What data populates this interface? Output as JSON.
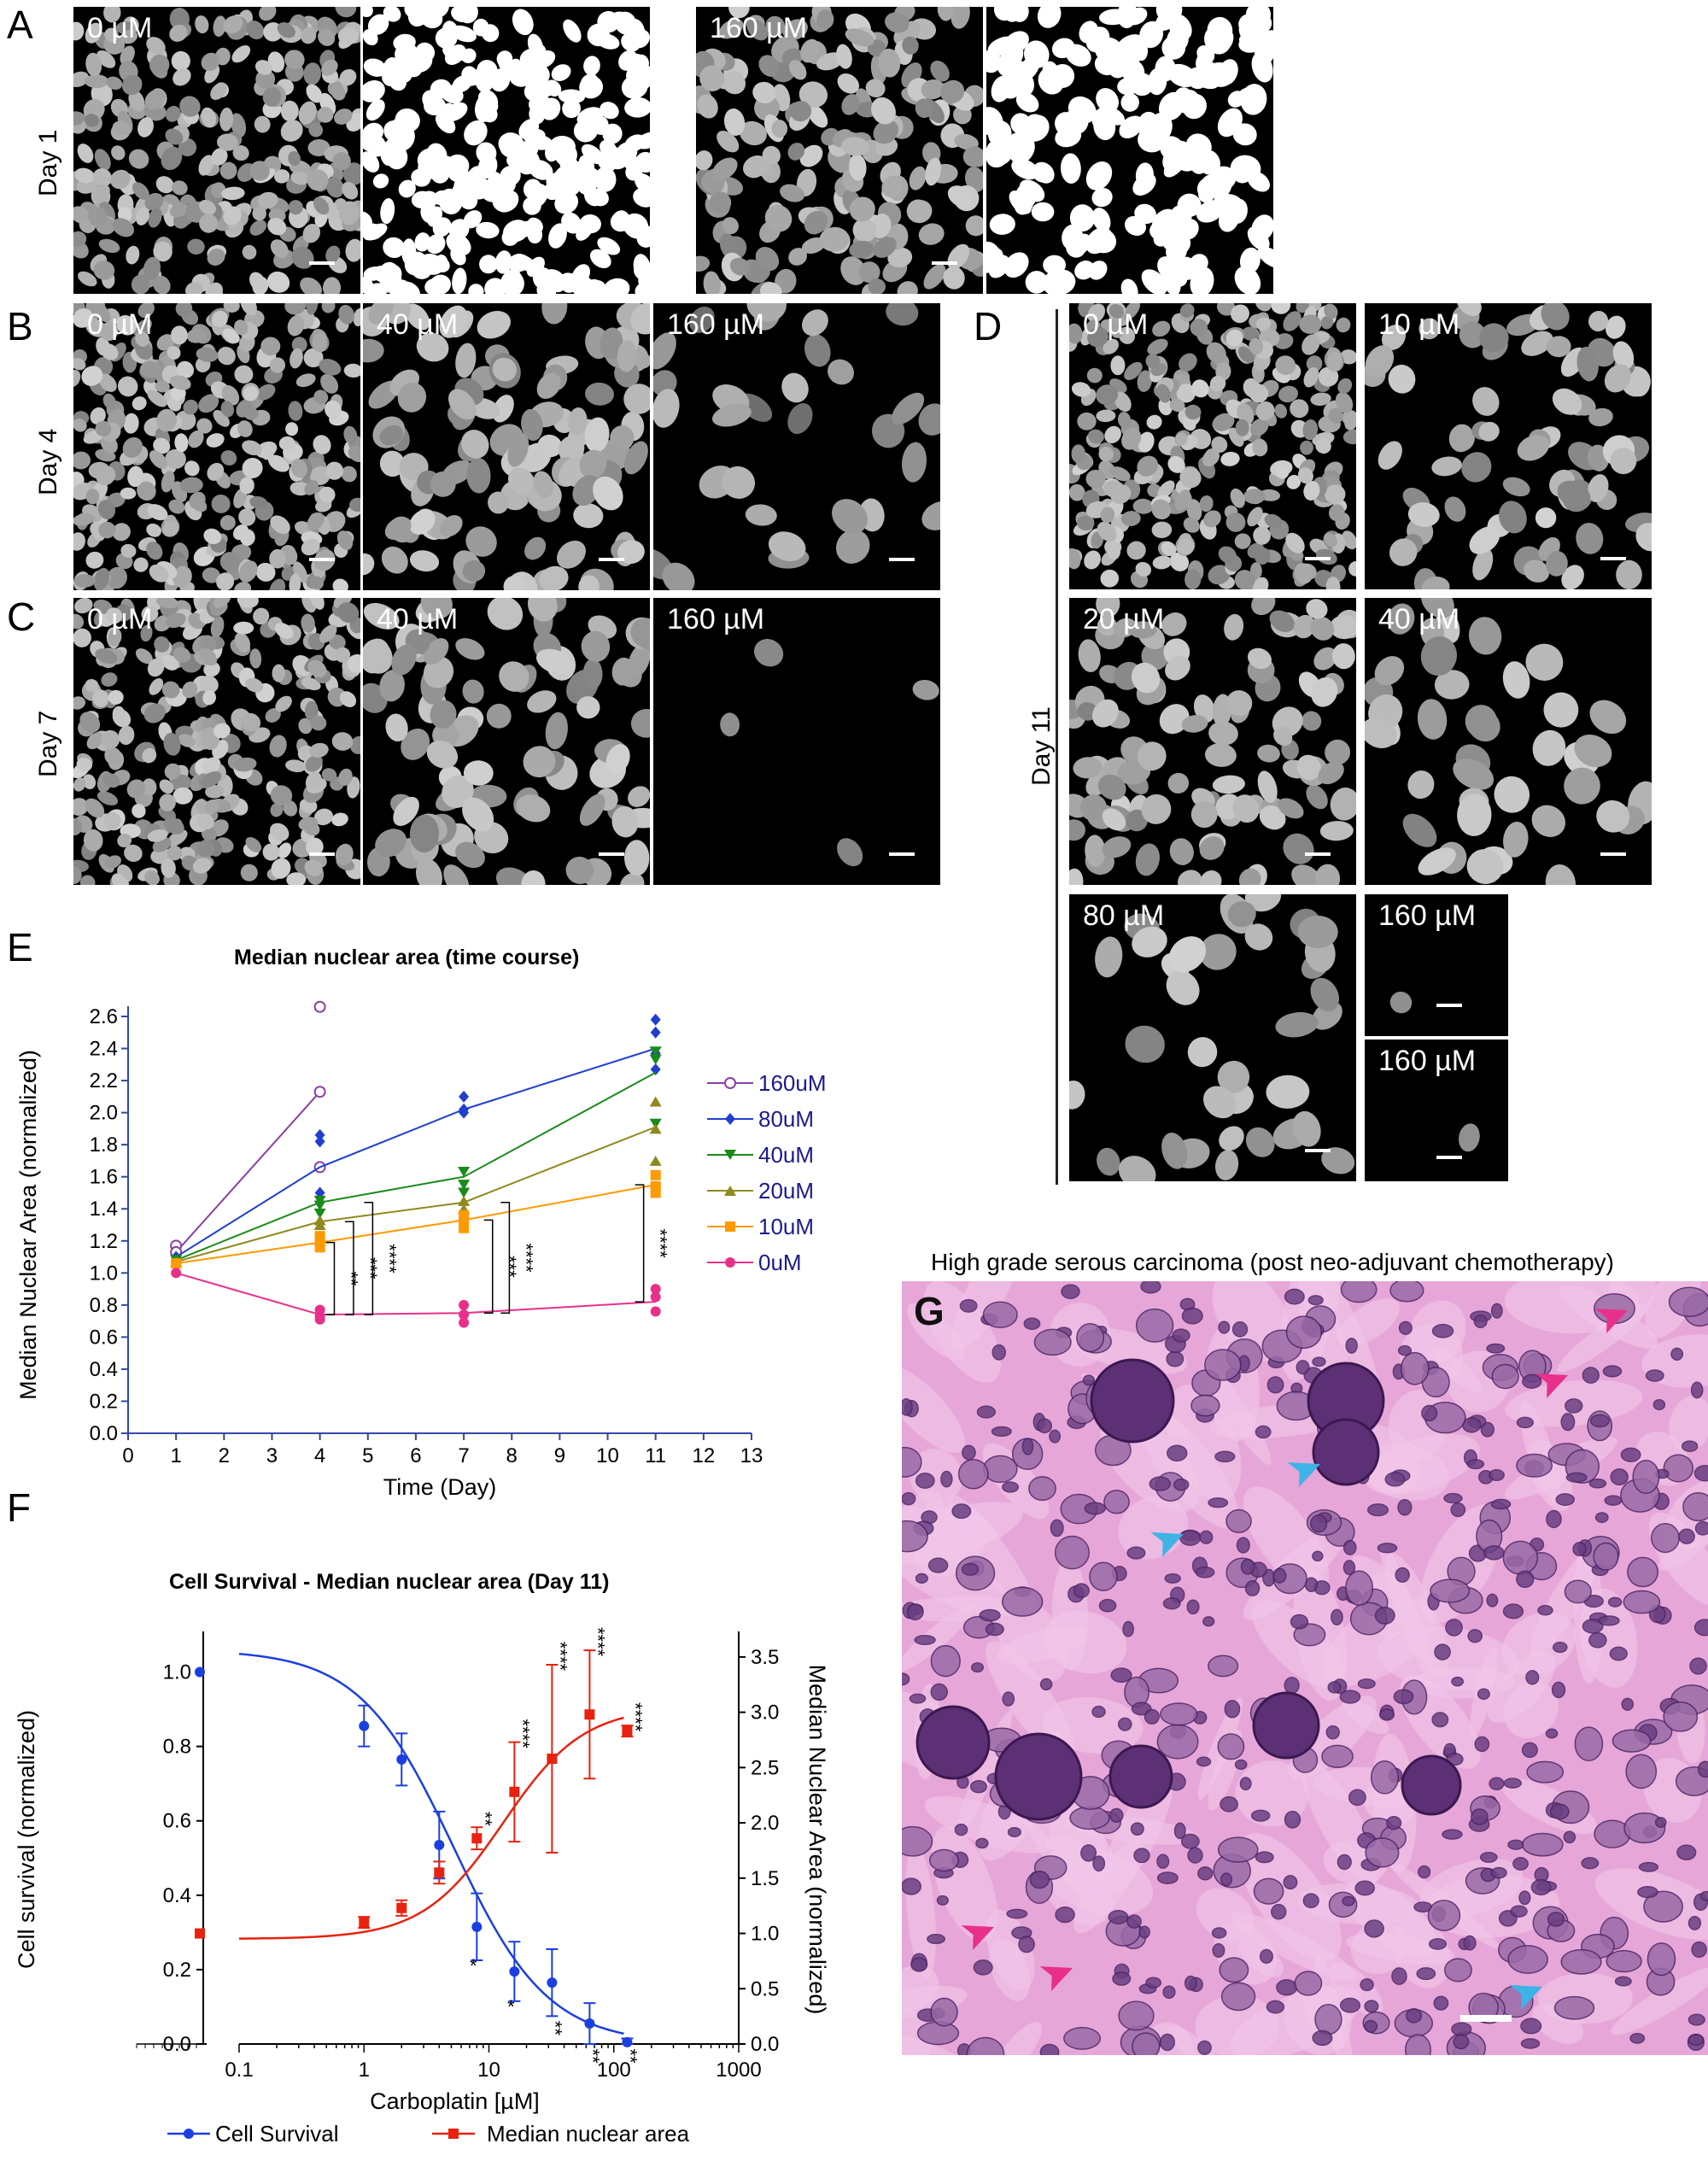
{
  "panel_letters": {
    "a": "A",
    "b": "B",
    "c": "C",
    "d": "D",
    "e": "E",
    "f": "F",
    "g": "G"
  },
  "row_labels": {
    "day1": "Day 1",
    "day4": "Day 4",
    "day7": "Day 7",
    "day11": "Day 11"
  },
  "micrographs": {
    "a_0": "0 µM",
    "a_160": "160 µM",
    "b_0": "0 µM",
    "b_40": "40 µM",
    "b_160": "160 µM",
    "c_0": "0 µM",
    "c_40": "40 µM",
    "c_160": "160 µM",
    "d_0": "0 µM",
    "d_10": "10 µM",
    "d_20": "20 µM",
    "d_40": "40 µM",
    "d_80": "80 µM",
    "d_160a": "160 µM",
    "d_160b": "160 µM"
  },
  "he_title": "High grade serous carcinoma (post neo-adjuvant chemotherapy)",
  "colors": {
    "160uM": "#8b3fa8",
    "80uM": "#1f3fd0",
    "40uM": "#1a8a1a",
    "20uM": "#8e8a1e",
    "10uM": "#ff9a00",
    "0uM": "#e8308a",
    "survival": "#1b3fe0",
    "nuclear": "#e8220f",
    "axis": "#3346a8"
  },
  "chart_data": [
    {
      "type": "line",
      "title": "Median nuclear area (time course)",
      "xlabel": "Time (Day)",
      "ylabel": "Median Nuclear Area (normalized)",
      "xlim": [
        0,
        13
      ],
      "ylim": [
        0,
        2.6
      ],
      "xticks": [
        "0",
        "1",
        "2",
        "3",
        "4",
        "5",
        "6",
        "7",
        "8",
        "9",
        "10",
        "11",
        "12",
        "13"
      ],
      "yticks": [
        "0.0",
        "0.2",
        "0.4",
        "0.6",
        "0.8",
        "1.0",
        "1.2",
        "1.4",
        "1.6",
        "1.8",
        "2.0",
        "2.2",
        "2.4",
        "2.6"
      ],
      "legend_position": "right",
      "series": [
        {
          "name": "160uM",
          "marker": "open-circle",
          "x": [
            1,
            4
          ],
          "y": [
            1.13,
            2.13
          ],
          "points": [
            [
              1,
              1.17
            ],
            [
              1,
              1.13
            ],
            [
              4,
              2.66
            ],
            [
              4,
              2.13
            ],
            [
              4,
              1.66
            ]
          ]
        },
        {
          "name": "80uM",
          "marker": "diamond",
          "x": [
            1,
            4,
            7,
            11
          ],
          "y": [
            1.1,
            1.66,
            2.02,
            2.4
          ],
          "points": [
            [
              1,
              1.1
            ],
            [
              4,
              1.86
            ],
            [
              4,
              1.82
            ],
            [
              4,
              1.5
            ],
            [
              7,
              2.1
            ],
            [
              7,
              2.02
            ],
            [
              7,
              2.0
            ],
            [
              11,
              2.58
            ],
            [
              11,
              2.5
            ],
            [
              11,
              2.37
            ],
            [
              11,
              2.27
            ]
          ]
        },
        {
          "name": "40uM",
          "marker": "triangle-down",
          "x": [
            1,
            4,
            7,
            11
          ],
          "y": [
            1.08,
            1.44,
            1.6,
            2.25
          ],
          "points": [
            [
              1,
              1.08
            ],
            [
              4,
              1.45
            ],
            [
              4,
              1.42
            ],
            [
              4,
              1.37
            ],
            [
              7,
              1.63
            ],
            [
              7,
              1.55
            ],
            [
              7,
              1.5
            ],
            [
              11,
              2.38
            ],
            [
              11,
              2.33
            ],
            [
              11,
              1.93
            ]
          ]
        },
        {
          "name": "20uM",
          "marker": "triangle-up",
          "x": [
            1,
            4,
            7,
            11
          ],
          "y": [
            1.07,
            1.32,
            1.44,
            1.91
          ],
          "points": [
            [
              1,
              1.07
            ],
            [
              4,
              1.33
            ],
            [
              4,
              1.3
            ],
            [
              7,
              1.45
            ],
            [
              7,
              1.4
            ],
            [
              11,
              2.07
            ],
            [
              11,
              1.9
            ],
            [
              11,
              1.7
            ]
          ]
        },
        {
          "name": "10uM",
          "marker": "square",
          "x": [
            1,
            4,
            7,
            11
          ],
          "y": [
            1.06,
            1.19,
            1.33,
            1.55
          ],
          "points": [
            [
              1,
              1.06
            ],
            [
              4,
              1.23
            ],
            [
              4,
              1.2
            ],
            [
              4,
              1.16
            ],
            [
              7,
              1.36
            ],
            [
              7,
              1.32
            ],
            [
              7,
              1.28
            ],
            [
              11,
              1.61
            ],
            [
              11,
              1.54
            ],
            [
              11,
              1.5
            ]
          ]
        },
        {
          "name": "0uM",
          "marker": "dot",
          "x": [
            1,
            4,
            7,
            11
          ],
          "y": [
            1.0,
            0.74,
            0.75,
            0.82
          ],
          "points": [
            [
              1,
              1.0
            ],
            [
              4,
              0.77
            ],
            [
              4,
              0.73
            ],
            [
              4,
              0.71
            ],
            [
              7,
              0.8
            ],
            [
              7,
              0.74
            ],
            [
              7,
              0.69
            ],
            [
              11,
              0.9
            ],
            [
              11,
              0.85
            ],
            [
              11,
              0.76
            ]
          ]
        }
      ],
      "annotations": [
        {
          "text": "**",
          "x": 4.3
        },
        {
          "text": "***",
          "x": 4.7
        },
        {
          "text": "****",
          "x": 5.1
        },
        {
          "text": "***",
          "x": 7.6
        },
        {
          "text": "****",
          "x": 7.95
        },
        {
          "text": "****",
          "x": 10.75
        }
      ]
    },
    {
      "type": "line",
      "title": "Cell Survival - Median nuclear area (Day 11)",
      "xlabel": "Carboplatin [µM]",
      "ylabel": "Cell survival (normalized)",
      "y2label": "Median Nuclear Area (normalized)",
      "x_scale": "log",
      "xticks": [
        "0.1",
        "1",
        "10",
        "100",
        "1000"
      ],
      "yticks": [
        "0.0",
        "0.2",
        "0.4",
        "0.6",
        "0.8",
        "1.0"
      ],
      "y2ticks": [
        "0.0",
        "0.5",
        "1.0",
        "1.5",
        "2.0",
        "2.5",
        "3.0",
        "3.5"
      ],
      "ylim": [
        0,
        1.1
      ],
      "y2lim": [
        0,
        3.7
      ],
      "legend_position": "bottom",
      "series": [
        {
          "name": "Cell Survival",
          "axis": "left",
          "x_zero": 1.0,
          "x": [
            1,
            2,
            4,
            8,
            16,
            32,
            64,
            128
          ],
          "y": [
            0.855,
            0.765,
            0.535,
            0.315,
            0.195,
            0.165,
            0.055,
            0.005
          ],
          "err": [
            0.055,
            0.07,
            0.09,
            0.09,
            0.08,
            0.09,
            0.055,
            0.01
          ]
        },
        {
          "name": "Median nuclear area",
          "axis": "right",
          "x_zero": 1.0,
          "x": [
            1,
            2,
            4,
            8,
            16,
            32,
            64,
            128
          ],
          "y": [
            1.1,
            1.23,
            1.55,
            1.86,
            2.28,
            2.58,
            2.98,
            2.83
          ],
          "err": [
            0.05,
            0.07,
            0.1,
            0.1,
            0.45,
            0.85,
            0.58,
            0.05
          ]
        }
      ],
      "annotations": [
        {
          "text": "*",
          "x": 8,
          "series": "Cell Survival"
        },
        {
          "text": "*",
          "x": 16,
          "series": "Cell Survival"
        },
        {
          "text": "**",
          "x": 32,
          "series": "Cell Survival"
        },
        {
          "text": "**",
          "x": 64,
          "series": "Cell Survival"
        },
        {
          "text": "**",
          "x": 128,
          "series": "Cell Survival"
        },
        {
          "text": "**",
          "x": 8,
          "series": "Median nuclear area"
        },
        {
          "text": "****",
          "x": 16,
          "series": "Median nuclear area"
        },
        {
          "text": "****",
          "x": 32,
          "series": "Median nuclear area"
        },
        {
          "text": "****",
          "x": 64,
          "series": "Median nuclear area"
        },
        {
          "text": "****",
          "x": 128,
          "series": "Median nuclear area"
        }
      ]
    }
  ]
}
